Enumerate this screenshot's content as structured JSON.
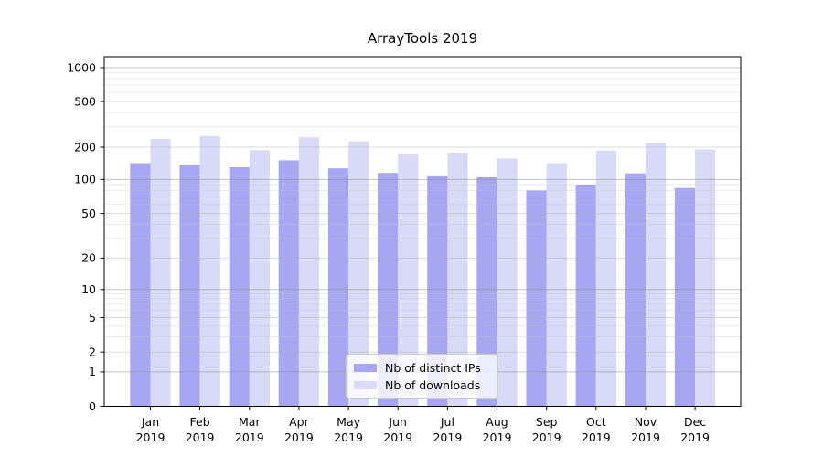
{
  "chart_data": {
    "type": "bar",
    "title": "ArrayTools 2019",
    "categories": [
      "Jan",
      "Feb",
      "Mar",
      "Apr",
      "May",
      "Jun",
      "Jul",
      "Aug",
      "Sep",
      "Oct",
      "Nov",
      "Dec"
    ],
    "category_year": "2019",
    "series": [
      {
        "name": "Nb of distinct IPs",
        "color": "#a6a6f2",
        "values": [
          142,
          137,
          130,
          151,
          127,
          115,
          107,
          105,
          80,
          90,
          114,
          84
        ]
      },
      {
        "name": "Nb of downloads",
        "color": "#d9d9f8",
        "values": [
          236,
          250,
          188,
          244,
          225,
          174,
          178,
          157,
          142,
          186,
          218,
          191
        ]
      }
    ],
    "xlabel": "",
    "ylabel": "",
    "yscale": "symlog",
    "yticks": [
      0,
      1,
      2,
      5,
      10,
      20,
      50,
      100,
      200,
      500,
      1000
    ],
    "ylim": [
      0,
      1250
    ],
    "grid": {
      "horizontal_major": true,
      "horizontal_minor": true,
      "drawn_over_bars": true
    },
    "legend": {
      "position": "lower-center",
      "frame": true
    }
  }
}
